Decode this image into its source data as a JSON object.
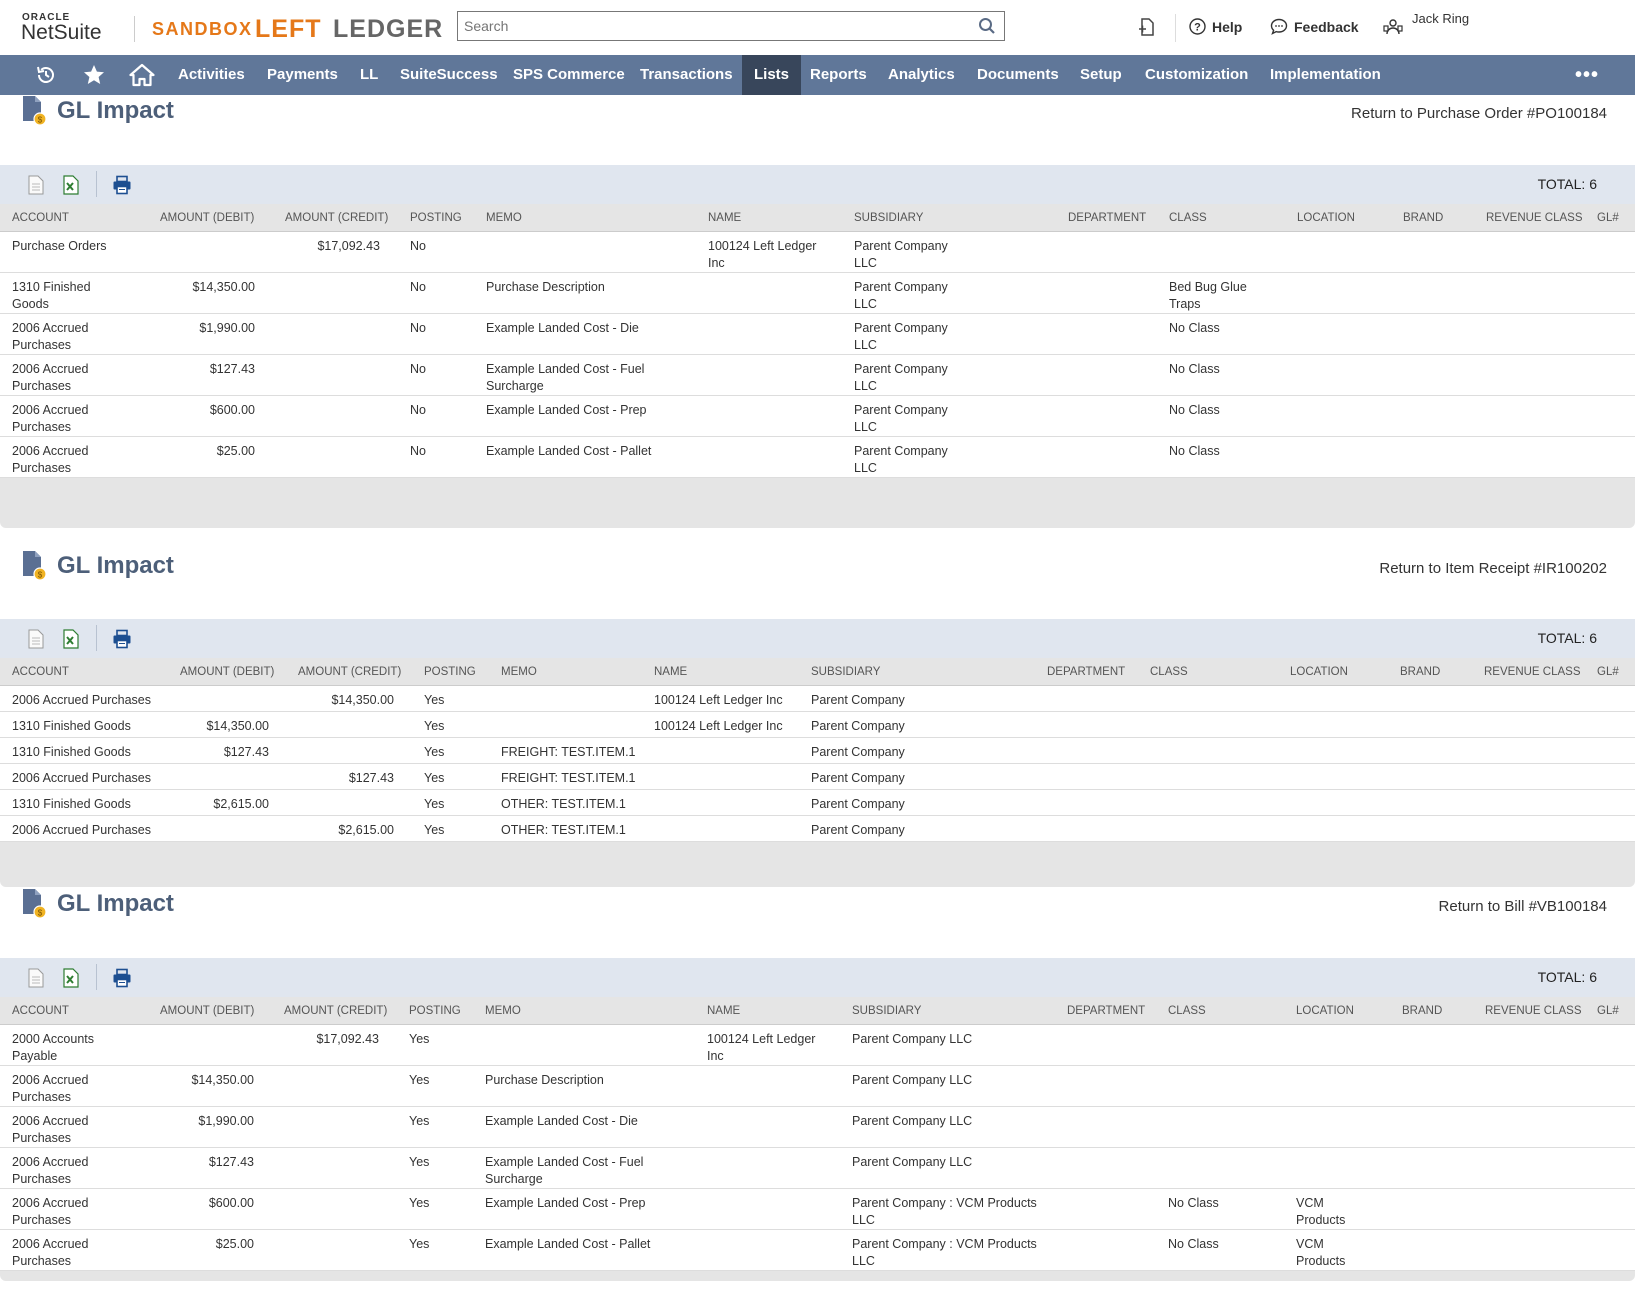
{
  "header": {
    "oracle_label": "ORACLE",
    "netsuite_label": "NetSuite",
    "env_label": "SANDBOX",
    "brand_left": "LEFT",
    "brand_ledger": "LEDGER",
    "search_placeholder": "Search",
    "help_label": "Help",
    "feedback_label": "Feedback",
    "user_name": "Jack Ring"
  },
  "nav": {
    "items": [
      "Activities",
      "Payments",
      "LL",
      "SuiteSuccess",
      "SPS Commerce",
      "Transactions",
      "Lists",
      "Reports",
      "Analytics",
      "Documents",
      "Setup",
      "Customization",
      "Implementation"
    ],
    "active": "Lists",
    "more": "•••"
  },
  "sections": [
    {
      "title": "GL Impact",
      "return_link": "Return to Purchase Order #PO100184",
      "total": "TOTAL: 6",
      "columns": [
        "ACCOUNT",
        "AMOUNT (DEBIT)",
        "AMOUNT (CREDIT)",
        "POSTING",
        "MEMO",
        "NAME",
        "SUBSIDIARY",
        "DEPARTMENT",
        "CLASS",
        "LOCATION",
        "BRAND",
        "REVENUE CLASS",
        "GL#"
      ],
      "rows": [
        {
          "account": "Purchase Orders",
          "debit": "",
          "credit": "$17,092.43",
          "posting": "No",
          "memo": "",
          "name": "100124 Left Ledger Inc",
          "subsidiary": "Parent Company LLC",
          "class": "",
          "location": ""
        },
        {
          "account": "1310 Finished Goods",
          "debit": "$14,350.00",
          "credit": "",
          "posting": "No",
          "memo": "Purchase Description",
          "name": "",
          "subsidiary": "Parent Company LLC",
          "class": "Bed Bug Glue Traps",
          "location": ""
        },
        {
          "account": "2006 Accrued Purchases",
          "debit": "$1,990.00",
          "credit": "",
          "posting": "No",
          "memo": "Example Landed Cost - Die",
          "name": "",
          "subsidiary": "Parent Company LLC",
          "class": "No Class",
          "location": ""
        },
        {
          "account": "2006 Accrued Purchases",
          "debit": "$127.43",
          "credit": "",
          "posting": "No",
          "memo": "Example Landed Cost - Fuel Surcharge",
          "name": "",
          "subsidiary": "Parent Company LLC",
          "class": "No Class",
          "location": ""
        },
        {
          "account": "2006 Accrued Purchases",
          "debit": "$600.00",
          "credit": "",
          "posting": "No",
          "memo": "Example Landed Cost - Prep",
          "name": "",
          "subsidiary": "Parent Company LLC",
          "class": "No Class",
          "location": ""
        },
        {
          "account": "2006 Accrued Purchases",
          "debit": "$25.00",
          "credit": "",
          "posting": "No",
          "memo": "Example Landed Cost - Pallet",
          "name": "",
          "subsidiary": "Parent Company LLC",
          "class": "No Class",
          "location": ""
        }
      ]
    },
    {
      "title": "GL Impact",
      "return_link": "Return to Item Receipt #IR100202",
      "total": "TOTAL: 6",
      "columns": [
        "ACCOUNT",
        "AMOUNT (DEBIT)",
        "AMOUNT (CREDIT)",
        "POSTING",
        "MEMO",
        "NAME",
        "SUBSIDIARY",
        "DEPARTMENT",
        "CLASS",
        "LOCATION",
        "BRAND",
        "REVENUE CLASS",
        "GL#"
      ],
      "rows": [
        {
          "account": "2006 Accrued Purchases",
          "debit": "",
          "credit": "$14,350.00",
          "posting": "Yes",
          "memo": "",
          "name": "100124 Left Ledger Inc",
          "subsidiary": "Parent Company",
          "class": "",
          "location": ""
        },
        {
          "account": "1310 Finished Goods",
          "debit": "$14,350.00",
          "credit": "",
          "posting": "Yes",
          "memo": "",
          "name": "100124 Left Ledger Inc",
          "subsidiary": "Parent Company",
          "class": "",
          "location": ""
        },
        {
          "account": "1310 Finished Goods",
          "debit": "$127.43",
          "credit": "",
          "posting": "Yes",
          "memo": "FREIGHT: TEST.ITEM.1",
          "name": "",
          "subsidiary": "Parent Company",
          "class": "",
          "location": ""
        },
        {
          "account": "2006 Accrued Purchases",
          "debit": "",
          "credit": "$127.43",
          "posting": "Yes",
          "memo": "FREIGHT: TEST.ITEM.1",
          "name": "",
          "subsidiary": "Parent Company",
          "class": "",
          "location": ""
        },
        {
          "account": "1310 Finished Goods",
          "debit": "$2,615.00",
          "credit": "",
          "posting": "Yes",
          "memo": "OTHER: TEST.ITEM.1",
          "name": "",
          "subsidiary": "Parent Company",
          "class": "",
          "location": ""
        },
        {
          "account": "2006 Accrued Purchases",
          "debit": "",
          "credit": "$2,615.00",
          "posting": "Yes",
          "memo": "OTHER: TEST.ITEM.1",
          "name": "",
          "subsidiary": "Parent Company",
          "class": "",
          "location": ""
        }
      ]
    },
    {
      "title": "GL Impact",
      "return_link": "Return to Bill #VB100184",
      "total": "TOTAL: 6",
      "columns": [
        "ACCOUNT",
        "AMOUNT (DEBIT)",
        "AMOUNT (CREDIT)",
        "POSTING",
        "MEMO",
        "NAME",
        "SUBSIDIARY",
        "DEPARTMENT",
        "CLASS",
        "LOCATION",
        "BRAND",
        "REVENUE CLASS",
        "GL#"
      ],
      "rows": [
        {
          "account": "2000 Accounts Payable",
          "debit": "",
          "credit": "$17,092.43",
          "posting": "Yes",
          "memo": "",
          "name": "100124 Left Ledger Inc",
          "subsidiary": "Parent Company LLC",
          "class": "",
          "location": ""
        },
        {
          "account": "2006 Accrued Purchases",
          "debit": "$14,350.00",
          "credit": "",
          "posting": "Yes",
          "memo": "Purchase Description",
          "name": "",
          "subsidiary": "Parent Company LLC",
          "class": "",
          "location": ""
        },
        {
          "account": "2006 Accrued Purchases",
          "debit": "$1,990.00",
          "credit": "",
          "posting": "Yes",
          "memo": "Example Landed Cost - Die",
          "name": "",
          "subsidiary": "Parent Company LLC",
          "class": "",
          "location": ""
        },
        {
          "account": "2006 Accrued Purchases",
          "debit": "$127.43",
          "credit": "",
          "posting": "Yes",
          "memo": "Example Landed Cost - Fuel Surcharge",
          "name": "",
          "subsidiary": "Parent Company LLC",
          "class": "",
          "location": ""
        },
        {
          "account": "2006 Accrued Purchases",
          "debit": "$600.00",
          "credit": "",
          "posting": "Yes",
          "memo": "Example Landed Cost - Prep",
          "name": "",
          "subsidiary": "Parent Company : VCM Products LLC",
          "class": "No Class",
          "location": "VCM Products"
        },
        {
          "account": "2006 Accrued Purchases",
          "debit": "$25.00",
          "credit": "",
          "posting": "Yes",
          "memo": "Example Landed Cost - Pallet",
          "name": "",
          "subsidiary": "Parent Company : VCM Products LLC",
          "class": "No Class",
          "location": "VCM Products"
        }
      ]
    }
  ],
  "colors": {
    "nav_bg": "#607799",
    "nav_active": "#38465b",
    "link": "#255599",
    "brand_orange": "#e57819",
    "toolbar_bg": "#e0e6ef"
  }
}
